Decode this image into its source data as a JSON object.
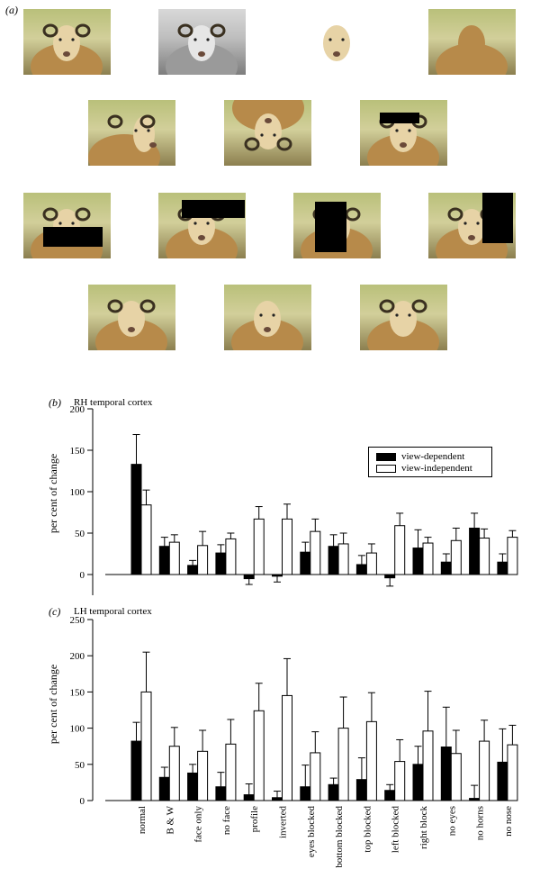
{
  "panels": {
    "a": "(a)",
    "b": "(b)",
    "c": "(c)"
  },
  "photos": [
    {
      "name": "normal",
      "variant": "normal"
    },
    {
      "name": "b-and-w",
      "variant": "bw"
    },
    {
      "name": "face-only",
      "variant": "faceonly"
    },
    {
      "name": "no-face",
      "variant": "noface"
    },
    {
      "name": "profile",
      "variant": "profile"
    },
    {
      "name": "inverted",
      "variant": "inverted"
    },
    {
      "name": "eyes-blocked",
      "variant": "eyes"
    },
    {
      "name": "bottom-blocked",
      "variant": "bottom"
    },
    {
      "name": "top-blocked",
      "variant": "top"
    },
    {
      "name": "left-blocked",
      "variant": "left"
    },
    {
      "name": "right-block",
      "variant": "right"
    },
    {
      "name": "no-eyes",
      "variant": "noeyes"
    },
    {
      "name": "no-horns",
      "variant": "nohorns"
    },
    {
      "name": "no-nose",
      "variant": "nonose"
    }
  ],
  "legend": {
    "dependent": "view-dependent",
    "independent": "view-independent"
  },
  "colors": {
    "dependent": "#000000",
    "independent": "#ffffff"
  },
  "chart_data": [
    {
      "type": "bar",
      "title": "RH temporal cortex",
      "ylabel": "per cent of change",
      "ylim": [
        -25,
        200
      ],
      "yticks": [
        0,
        50,
        100,
        150,
        200
      ],
      "categories": [
        "normal",
        "B & W",
        "face only",
        "no face",
        "profile",
        "inverted",
        "eyes blocked",
        "bottom blocked",
        "top blocked",
        "left blocked",
        "right block",
        "no eyes",
        "no horns",
        "no nose"
      ],
      "series": [
        {
          "name": "view-dependent",
          "values": [
            133,
            34,
            11,
            26,
            -5,
            -2,
            27,
            34,
            12,
            -4,
            32,
            15,
            56,
            15
          ],
          "errors": [
            36,
            11,
            6,
            10,
            7,
            7,
            12,
            14,
            11,
            10,
            22,
            10,
            18,
            10
          ]
        },
        {
          "name": "view-independent",
          "values": [
            84,
            39,
            35,
            43,
            67,
            67,
            52,
            37,
            26,
            59,
            38,
            41,
            44,
            45
          ],
          "errors": [
            18,
            9,
            17,
            7,
            15,
            18,
            15,
            13,
            11,
            15,
            7,
            15,
            11,
            8
          ]
        }
      ],
      "legend_position": "top-right"
    },
    {
      "type": "bar",
      "title": "LH temporal cortex",
      "ylabel": "per cent of change",
      "ylim": [
        0,
        250
      ],
      "yticks": [
        0,
        50,
        100,
        150,
        200,
        250
      ],
      "categories": [
        "normal",
        "B & W",
        "face only",
        "no face",
        "profile",
        "inverted",
        "eyes blocked",
        "bottom blocked",
        "top blocked",
        "left blocked",
        "right block",
        "no eyes",
        "no horns",
        "no nose"
      ],
      "series": [
        {
          "name": "view-dependent",
          "values": [
            82,
            32,
            38,
            19,
            8,
            4,
            19,
            22,
            29,
            14,
            50,
            74,
            3,
            53
          ],
          "errors": [
            26,
            14,
            12,
            20,
            15,
            9,
            30,
            9,
            30,
            8,
            25,
            55,
            18,
            46
          ]
        },
        {
          "name": "view-independent",
          "values": [
            150,
            75,
            68,
            78,
            124,
            145,
            66,
            100,
            109,
            54,
            96,
            65,
            82,
            77
          ],
          "errors": [
            55,
            26,
            29,
            34,
            38,
            51,
            29,
            43,
            40,
            30,
            55,
            32,
            29,
            27
          ]
        }
      ]
    }
  ]
}
